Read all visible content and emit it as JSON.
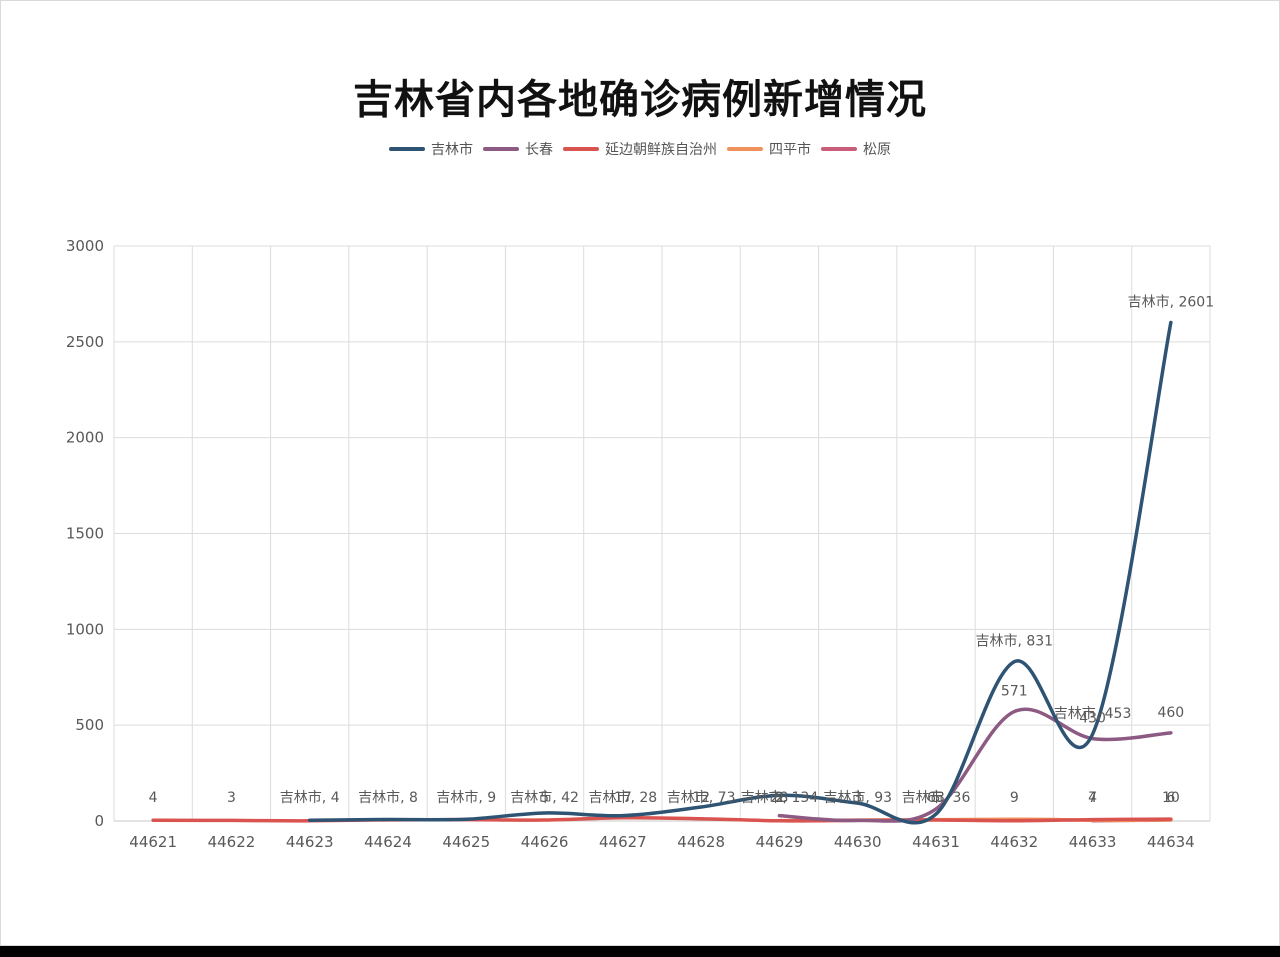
{
  "chart_data": {
    "type": "line",
    "title": "吉林省内各地确诊病例新增情况",
    "categories": [
      "44621",
      "44622",
      "44623",
      "44624",
      "44625",
      "44626",
      "44627",
      "44628",
      "44629",
      "44630",
      "44631",
      "44632",
      "44633",
      "44634"
    ],
    "ylim": [
      0,
      3000
    ],
    "yticks": [
      "0",
      "500",
      "1000",
      "1500",
      "2000",
      "2500",
      "3000"
    ],
    "grid": true,
    "legend_position": "top",
    "series": [
      {
        "name": "吉林市",
        "color": "#2e5373",
        "values": [
          null,
          null,
          4,
          8,
          9,
          42,
          28,
          73,
          134,
          93,
          36,
          831,
          453,
          2601
        ]
      },
      {
        "name": "长春",
        "color": "#8c5a82",
        "values": [
          null,
          null,
          null,
          null,
          null,
          null,
          null,
          null,
          28,
          3,
          63,
          571,
          430,
          460
        ]
      },
      {
        "name": "延边朝鲜族自治州",
        "color": "#d9534f",
        "values": [
          4,
          3,
          1,
          6,
          7,
          5,
          17,
          12,
          1,
          3,
          5,
          1,
          7,
          10
        ]
      },
      {
        "name": "四平市",
        "color": "#f0905a",
        "values": [
          null,
          null,
          null,
          null,
          null,
          null,
          null,
          null,
          2,
          null,
          null,
          9,
          4,
          6
        ]
      },
      {
        "name": "松原",
        "color": "#c95d7a",
        "values": [
          null,
          null,
          null,
          null,
          null,
          null,
          null,
          null,
          null,
          null,
          null,
          null,
          1,
          5
        ]
      }
    ],
    "data_labels": [
      {
        "series": 2,
        "index": 0,
        "text": "4"
      },
      {
        "series": 2,
        "index": 1,
        "text": "3"
      },
      {
        "series": 0,
        "index": 2,
        "text": "吉林市, 4"
      },
      {
        "series": 0,
        "index": 3,
        "text": "吉林市, 8"
      },
      {
        "series": 0,
        "index": 4,
        "text": "吉林市, 9"
      },
      {
        "series": 0,
        "index": 5,
        "text": "吉林市, 42"
      },
      {
        "series": 0,
        "index": 6,
        "text": "吉林市, 28"
      },
      {
        "series": 0,
        "index": 7,
        "text": "吉林市, 73"
      },
      {
        "series": 0,
        "index": 8,
        "text": "吉林市, 134"
      },
      {
        "series": 0,
        "index": 9,
        "text": "吉林市, 93"
      },
      {
        "series": 0,
        "index": 10,
        "text": "吉林市, 36"
      },
      {
        "series": 0,
        "index": 11,
        "text": "吉林市, 831"
      },
      {
        "series": 0,
        "index": 12,
        "text": "吉林市, 453"
      },
      {
        "series": 0,
        "index": 13,
        "text": "吉林市, 2601"
      },
      {
        "series": 1,
        "index": 11,
        "text": "571"
      },
      {
        "series": 1,
        "index": 12,
        "text": "430"
      },
      {
        "series": 1,
        "index": 13,
        "text": "460"
      },
      {
        "series": 1,
        "index": 10,
        "text": "63"
      },
      {
        "series": 2,
        "index": 5,
        "text": "5"
      },
      {
        "series": 2,
        "index": 6,
        "text": "17"
      },
      {
        "series": 2,
        "index": 7,
        "text": "12"
      },
      {
        "series": 1,
        "index": 8,
        "text": "28"
      },
      {
        "series": 3,
        "index": 8,
        "text": "2"
      },
      {
        "series": 2,
        "index": 9,
        "text": "3"
      },
      {
        "series": 2,
        "index": 10,
        "text": "5"
      },
      {
        "series": 3,
        "index": 11,
        "text": "9"
      },
      {
        "series": 2,
        "index": 12,
        "text": "7"
      },
      {
        "series": 3,
        "index": 12,
        "text": "4"
      },
      {
        "series": 2,
        "index": 13,
        "text": "10"
      },
      {
        "series": 3,
        "index": 13,
        "text": "6"
      }
    ]
  }
}
